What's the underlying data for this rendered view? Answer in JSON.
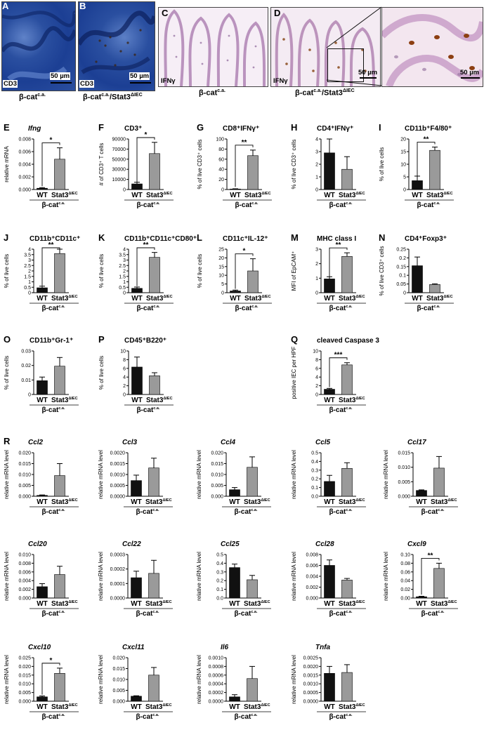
{
  "histology": {
    "panels": [
      {
        "letter": "A",
        "stain": "CD3",
        "scale": "50 µm"
      },
      {
        "letter": "B",
        "stain": "CD3",
        "scale": "50 µm"
      },
      {
        "letter": "C",
        "stain": "IFNγ",
        "scale": ""
      },
      {
        "letter": "D",
        "stain": "IFNγ",
        "scale": "50 µm"
      },
      {
        "letter": "",
        "stain": "",
        "scale": "50 µm"
      }
    ],
    "caption_ab_1": "β-cat",
    "caption_ab_1_sup": "c.a.",
    "caption_ab_2": "β-cat",
    "caption_ab_2_sup": "c.a.",
    "caption_ab_2_tail": "/Stat3",
    "caption_ab_2_tail_sup": "ΔIEC",
    "caption_c": "β-cat",
    "caption_c_sup": "c.a.",
    "caption_d": "β-cat",
    "caption_d_sup": "c.a.",
    "caption_d_tail": "/Stat3",
    "caption_d_tail_sup": "ΔIEC"
  },
  "common": {
    "wt_label": "WT",
    "ko_label": "Stat3",
    "ko_sup": "ΔIEC",
    "group_label": "β-cat",
    "group_sup": "c.a."
  },
  "colors": {
    "wt": "#111111",
    "ko": "#9a9a9a",
    "axis": "#000000"
  },
  "chart_data": [
    {
      "letter": "E",
      "type": "bar",
      "title": "Ifng",
      "title_italic": true,
      "ylabel": "relative mRNA",
      "ylim": [
        0,
        0.008
      ],
      "yticks": [
        "0.000",
        "0.002",
        "0.004",
        "0.006",
        "0.008"
      ],
      "categories": [
        "WT",
        "Stat3ΔIEC"
      ],
      "values": [
        0.0002,
        0.0048
      ],
      "errors": [
        0.0001,
        0.0018
      ],
      "sig": "*"
    },
    {
      "letter": "F",
      "type": "bar",
      "title": "CD3⁺",
      "ylabel": "# of CD3⁺ T cells",
      "ylim": [
        0,
        90000
      ],
      "yticks": [
        "0",
        "10000",
        "30000",
        "50000",
        "70000",
        "90000"
      ],
      "categories": [
        "WT",
        "Stat3ΔIEC"
      ],
      "values": [
        10000,
        64000
      ],
      "errors": [
        3000,
        20000
      ],
      "sig": "*"
    },
    {
      "letter": "G",
      "type": "bar",
      "title": "CD8⁺IFNγ⁺",
      "ylabel": "% of live CD3⁺ cells",
      "ylim": [
        0,
        100
      ],
      "yticks": [
        "0",
        "20",
        "40",
        "60",
        "80",
        "100"
      ],
      "categories": [
        "WT",
        "Stat3ΔIEC"
      ],
      "values": [
        1,
        67
      ],
      "errors": [
        0.5,
        11
      ],
      "sig": "**"
    },
    {
      "letter": "H",
      "type": "bar",
      "title": "CD4⁺IFNγ⁺",
      "ylabel": "% of live CD3⁺ cells",
      "ylim": [
        0,
        4
      ],
      "yticks": [
        "0",
        "1",
        "2",
        "3",
        "4"
      ],
      "categories": [
        "WT",
        "Stat3ΔIEC"
      ],
      "values": [
        2.9,
        1.6
      ],
      "errors": [
        1.4,
        1.0
      ],
      "sig": ""
    },
    {
      "letter": "I",
      "type": "bar",
      "title": "CD11b⁺F4/80⁺",
      "ylabel": "% of live cells",
      "ylim": [
        0,
        20
      ],
      "yticks": [
        "0",
        "5",
        "10",
        "15",
        "20"
      ],
      "categories": [
        "WT",
        "Stat3ΔIEC"
      ],
      "values": [
        3.5,
        15.5
      ],
      "errors": [
        1.8,
        1.3
      ],
      "sig": "**"
    },
    {
      "letter": "J",
      "type": "bar",
      "title": "CD11b⁺CD11c⁺",
      "ylabel": "% of live cells",
      "ylim": [
        0,
        4
      ],
      "yticks": [
        "0",
        "0.5",
        "1",
        "1.5",
        "2",
        "2.5",
        "3",
        "3.5",
        "4"
      ],
      "categories": [
        "WT",
        "Stat3ΔIEC"
      ],
      "values": [
        0.45,
        3.6
      ],
      "errors": [
        0.15,
        0.5
      ],
      "sig": "**"
    },
    {
      "letter": "K",
      "type": "bar",
      "title": "CD11b⁺CD11c⁺CD80⁺",
      "ylabel": "% of live cells",
      "ylim": [
        0,
        4
      ],
      "yticks": [
        "0",
        "0.5",
        "1",
        "1.5",
        "2",
        "2.5",
        "3",
        "3.5",
        "4"
      ],
      "categories": [
        "WT",
        "Stat3ΔIEC"
      ],
      "values": [
        0.4,
        3.25
      ],
      "errors": [
        0.12,
        0.45
      ],
      "sig": "**"
    },
    {
      "letter": "L",
      "type": "bar",
      "title": "CD11c⁺IL-12⁺",
      "ylabel": "% of live cells",
      "ylim": [
        0,
        25
      ],
      "yticks": [
        "0",
        "5",
        "10",
        "15",
        "20",
        "25"
      ],
      "categories": [
        "WT",
        "Stat3ΔIEC"
      ],
      "values": [
        1,
        12.5
      ],
      "errors": [
        0.5,
        7
      ],
      "sig": "*"
    },
    {
      "letter": "M",
      "type": "bar",
      "title": "MHC class I",
      "ylabel": "MFI of EpCAM⁺",
      "ylim": [
        0,
        3
      ],
      "yticks": [
        "0",
        "1",
        "2",
        "3"
      ],
      "categories": [
        "WT",
        "Stat3ΔIEC"
      ],
      "values": [
        0.95,
        2.5
      ],
      "errors": [
        0.15,
        0.25
      ],
      "sig": "**"
    },
    {
      "letter": "N",
      "type": "bar",
      "title": "CD4⁺Foxp3⁺",
      "ylabel": "% of live CD3⁺ cells",
      "ylim": [
        0,
        0.25
      ],
      "yticks": [
        "0",
        "0.05",
        "0.1",
        "0.15",
        "0.2",
        "0.25"
      ],
      "categories": [
        "WT",
        "Stat3ΔIEC"
      ],
      "values": [
        0.155,
        0.047
      ],
      "errors": [
        0.05,
        0.004
      ],
      "sig": ""
    },
    {
      "letter": "O",
      "type": "bar",
      "title": "CD11b⁺Gr-1⁺",
      "ylabel": "% of live cells",
      "ylim": [
        0,
        0.03
      ],
      "yticks": [
        "0",
        "0.01",
        "0.02",
        "0.03"
      ],
      "categories": [
        "WT",
        "Stat3ΔIEC"
      ],
      "values": [
        0.0095,
        0.0195
      ],
      "errors": [
        0.0025,
        0.006
      ],
      "sig": ""
    },
    {
      "letter": "P",
      "type": "bar",
      "title": "CD45⁺B220⁺",
      "ylabel": "% of live cells",
      "ylim": [
        0,
        10
      ],
      "yticks": [
        "0",
        "2",
        "4",
        "6",
        "8",
        "10"
      ],
      "categories": [
        "WT",
        "Stat3ΔIEC"
      ],
      "values": [
        6.3,
        4.3
      ],
      "errors": [
        2.3,
        0.7
      ],
      "sig": ""
    },
    {
      "letter": "Q",
      "type": "bar",
      "title": "cleaved Caspase 3",
      "ylabel": "positive IEC per HPF",
      "ylim": [
        0,
        10
      ],
      "yticks": [
        "0",
        "2",
        "4",
        "6",
        "8",
        "10"
      ],
      "categories": [
        "WT",
        "Stat3ΔIEC"
      ],
      "values": [
        1.2,
        6.8
      ],
      "errors": [
        0.2,
        0.5
      ],
      "sig": "***"
    },
    {
      "letter": "R",
      "type": "bar",
      "title": "Ccl2",
      "title_italic": true,
      "ylabel": "relative mRNA level",
      "ylim": [
        0,
        0.02
      ],
      "yticks": [
        "0.000",
        "0.005",
        "0.010",
        "0.015",
        "0.020"
      ],
      "categories": [
        "WT",
        "Stat3ΔIEC"
      ],
      "values": [
        0.0004,
        0.0095
      ],
      "errors": [
        0.0002,
        0.0055
      ],
      "sig": ""
    },
    {
      "letter": "",
      "type": "bar",
      "title": "Ccl3",
      "title_italic": true,
      "ylabel": "relative mRNA level",
      "ylim": [
        0,
        0.002
      ],
      "yticks": [
        "0.0000",
        "0.0005",
        "0.0010",
        "0.0015",
        "0.0020"
      ],
      "categories": [
        "WT",
        "Stat3ΔIEC"
      ],
      "values": [
        0.00072,
        0.0013
      ],
      "errors": [
        0.00025,
        0.00045
      ],
      "sig": ""
    },
    {
      "letter": "",
      "type": "bar",
      "title": "Ccl4",
      "title_italic": true,
      "ylabel": "relative mRNA level",
      "ylim": [
        0,
        0.02
      ],
      "yticks": [
        "0.000",
        "0.005",
        "0.010",
        "0.015",
        "0.020"
      ],
      "categories": [
        "WT",
        "Stat3ΔIEC"
      ],
      "values": [
        0.003,
        0.0133
      ],
      "errors": [
        0.001,
        0.0048
      ],
      "sig": ""
    },
    {
      "letter": "",
      "type": "bar",
      "title": "Ccl5",
      "title_italic": true,
      "ylabel": "relative mRNA level",
      "ylim": [
        0,
        0.5
      ],
      "yticks": [
        "0.0",
        "0.1",
        "0.2",
        "0.3",
        "0.4",
        "0.5"
      ],
      "categories": [
        "WT",
        "Stat3ΔIEC"
      ],
      "values": [
        0.17,
        0.32
      ],
      "errors": [
        0.07,
        0.065
      ],
      "sig": ""
    },
    {
      "letter": "",
      "type": "bar",
      "title": "Ccl17",
      "title_italic": true,
      "ylabel": "relative mRNA level",
      "ylim": [
        0,
        0.015
      ],
      "yticks": [
        "0.000",
        "0.005",
        "0.010",
        "0.015"
      ],
      "categories": [
        "WT",
        "Stat3ΔIEC"
      ],
      "values": [
        0.002,
        0.0097
      ],
      "errors": [
        0.0002,
        0.004
      ],
      "sig": ""
    },
    {
      "letter": "",
      "type": "bar",
      "title": "Ccl20",
      "title_italic": true,
      "ylabel": "relative mRNA level",
      "ylim": [
        0,
        0.01
      ],
      "yticks": [
        "0.000",
        "0.002",
        "0.004",
        "0.006",
        "0.008",
        "0.010"
      ],
      "categories": [
        "WT",
        "Stat3ΔIEC"
      ],
      "values": [
        0.0026,
        0.0054
      ],
      "errors": [
        0.0007,
        0.0019
      ],
      "sig": ""
    },
    {
      "letter": "",
      "type": "bar",
      "title": "Ccl22",
      "title_italic": true,
      "ylabel": "relative mRNA level",
      "ylim": [
        0,
        0.0003
      ],
      "yticks": [
        "0.0000",
        "0.0001",
        "0.0002",
        "0.0003"
      ],
      "categories": [
        "WT",
        "Stat3ΔIEC"
      ],
      "values": [
        0.00014,
        0.00017
      ],
      "errors": [
        4.5e-05,
        9e-05
      ],
      "sig": ""
    },
    {
      "letter": "",
      "type": "bar",
      "title": "Ccl25",
      "title_italic": true,
      "ylabel": "relative mRNA level",
      "ylim": [
        0,
        0.5
      ],
      "yticks": [
        "0.0",
        "0.1",
        "0.2",
        "0.3",
        "0.4",
        "0.5"
      ],
      "categories": [
        "WT",
        "Stat3ΔIEC"
      ],
      "values": [
        0.35,
        0.21
      ],
      "errors": [
        0.04,
        0.05
      ],
      "sig": ""
    },
    {
      "letter": "",
      "type": "bar",
      "title": "Ccl28",
      "title_italic": true,
      "ylabel": "relative mRNA level",
      "ylim": [
        0,
        0.008
      ],
      "yticks": [
        "0.000",
        "0.002",
        "0.004",
        "0.006",
        "0.008"
      ],
      "categories": [
        "WT",
        "Stat3ΔIEC"
      ],
      "values": [
        0.006,
        0.0033
      ],
      "errors": [
        0.001,
        0.0003
      ],
      "sig": ""
    },
    {
      "letter": "",
      "type": "bar",
      "title": "Cxcl9",
      "title_italic": true,
      "ylabel": "relative mRNA level",
      "ylim": [
        0,
        0.1
      ],
      "yticks": [
        "0.00",
        "0.02",
        "0.04",
        "0.06",
        "0.08",
        "0.10"
      ],
      "categories": [
        "WT",
        "Stat3ΔIEC"
      ],
      "values": [
        0.003,
        0.068
      ],
      "errors": [
        0.001,
        0.012
      ],
      "sig": "**"
    },
    {
      "letter": "",
      "type": "bar",
      "title": "Cxcl10",
      "title_italic": true,
      "ylabel": "relative mRNA level",
      "ylim": [
        0,
        0.025
      ],
      "yticks": [
        "0.000",
        "0.005",
        "0.010",
        "0.015",
        "0.020",
        "0.025"
      ],
      "categories": [
        "WT",
        "Stat3ΔIEC"
      ],
      "values": [
        0.0025,
        0.016
      ],
      "errors": [
        0.0005,
        0.003
      ],
      "sig": "*"
    },
    {
      "letter": "",
      "type": "bar",
      "title": "Cxcl11",
      "title_italic": true,
      "ylabel": "relative mRNA level",
      "ylim": [
        0,
        0.02
      ],
      "yticks": [
        "0.000",
        "0.005",
        "0.010",
        "0.015",
        "0.020"
      ],
      "categories": [
        "WT",
        "Stat3ΔIEC"
      ],
      "values": [
        0.0023,
        0.012
      ],
      "errors": [
        0.0002,
        0.0035
      ],
      "sig": ""
    },
    {
      "letter": "",
      "type": "bar",
      "title": "Il6",
      "title_italic": true,
      "ylabel": "relative mRNA level",
      "ylim": [
        0,
        0.001
      ],
      "yticks": [
        "0.0000",
        "0.0002",
        "0.0004",
        "0.0006",
        "0.0008",
        "0.0010"
      ],
      "categories": [
        "WT",
        "Stat3ΔIEC"
      ],
      "values": [
        0.0001,
        0.00052
      ],
      "errors": [
        5e-05,
        0.00028
      ],
      "sig": ""
    },
    {
      "letter": "",
      "type": "bar",
      "title": "Tnfa",
      "title_italic": true,
      "ylabel": "relative mRNA level",
      "ylim": [
        0,
        0.0025
      ],
      "yticks": [
        "0.0000",
        "0.0005",
        "0.0010",
        "0.0015",
        "0.0020",
        "0.0025"
      ],
      "categories": [
        "WT",
        "Stat3ΔIEC"
      ],
      "values": [
        0.0016,
        0.00165
      ],
      "errors": [
        0.0004,
        0.00045
      ],
      "sig": ""
    }
  ]
}
